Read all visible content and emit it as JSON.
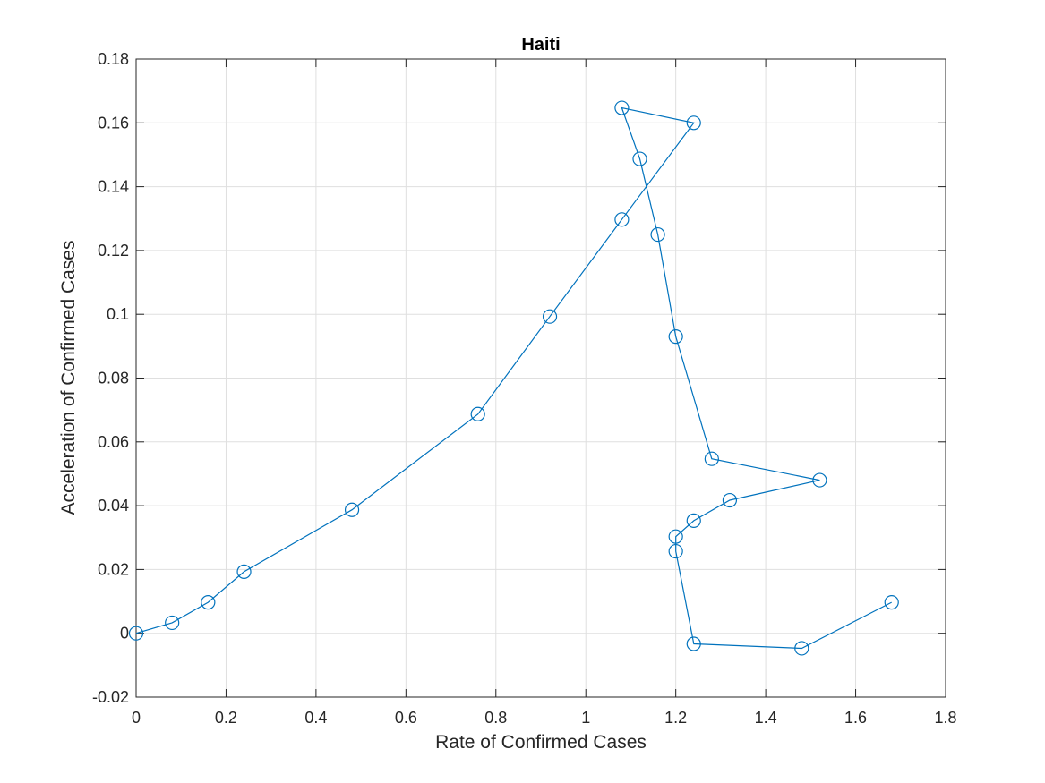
{
  "chart_data": {
    "type": "line",
    "title": "Haiti",
    "xlabel": "Rate of Confirmed Cases",
    "ylabel": "Acceleration of Confirmed Cases",
    "xlim": [
      0,
      1.8
    ],
    "ylim": [
      -0.02,
      0.18
    ],
    "xticks": [
      0,
      0.2,
      0.4,
      0.6,
      0.8,
      1,
      1.2,
      1.4,
      1.6,
      1.8
    ],
    "xtick_labels": [
      "0",
      "0.2",
      "0.4",
      "0.6",
      "0.8",
      "1",
      "1.2",
      "1.4",
      "1.6",
      "1.8"
    ],
    "yticks": [
      -0.02,
      0,
      0.02,
      0.04,
      0.06,
      0.08,
      0.1,
      0.12,
      0.14,
      0.16,
      0.18
    ],
    "ytick_labels": [
      "-0.02",
      "0",
      "0.02",
      "0.04",
      "0.06",
      "0.08",
      "0.1",
      "0.12",
      "0.14",
      "0.16",
      "0.18"
    ],
    "grid": true,
    "marker": "circle",
    "color": "#0072bd",
    "series": [
      {
        "x": [
          0,
          0.08,
          0.16,
          0.24,
          0.48,
          0.76,
          0.92,
          1.08,
          1.24,
          1.08,
          1.12,
          1.16,
          1.2,
          1.28,
          1.52,
          1.32,
          1.24,
          1.2,
          1.2,
          1.24,
          1.48,
          1.68
        ],
        "y": [
          0,
          0.0033,
          0.0097,
          0.0193,
          0.0387,
          0.0687,
          0.0993,
          0.1297,
          0.16,
          0.1647,
          0.1487,
          0.125,
          0.093,
          0.0547,
          0.048,
          0.0417,
          0.0353,
          0.0303,
          0.0257,
          -0.0033,
          -0.0047,
          0.0097
        ]
      }
    ]
  }
}
